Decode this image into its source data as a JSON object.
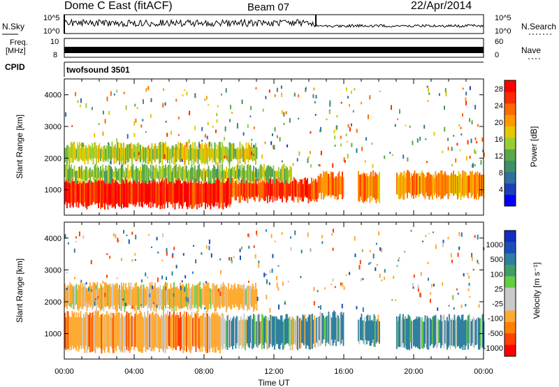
{
  "header": {
    "station": "Dome C East (fitACF)",
    "beam": "Beam 07",
    "date": "22/Apr/2014"
  },
  "top_panels": {
    "nsky_label": "N.Sky",
    "nsky_ticks": [
      "10^5",
      "10^0"
    ],
    "nsearch_label": "N.Search",
    "nsearch_ticks": [
      "10^5",
      "10^0"
    ],
    "freq_label": "Freq.",
    "freq_unit": "[MHz]",
    "freq_ticks": [
      "10",
      "8"
    ],
    "nave_label": "Nave",
    "nave_ticks": [
      "60",
      "0"
    ],
    "cpid_label": "CPID",
    "cpid_value": "twofsound 3501"
  },
  "colors": {
    "power_scale": [
      "#0000ff",
      "#1b3fb8",
      "#2f6fa0",
      "#3f8f6a",
      "#5aa84a",
      "#9acd32",
      "#e6c800",
      "#ff9900",
      "#ff6a00",
      "#ff2a00",
      "#ff0000"
    ],
    "velocity_scale": [
      "#ff0000",
      "#ff4000",
      "#ff7f00",
      "#ffaa33",
      "#c9c9c9",
      "#c9c9c9",
      "#66cc44",
      "#3f9f66",
      "#2f7fa0",
      "#1b4fb8",
      "#1030c0"
    ]
  },
  "chart_data": [
    {
      "type": "heatmap",
      "panel": "power",
      "ylabel": "Slant Range [km]",
      "x_ticks": [
        "00:00",
        "04:00",
        "08:00",
        "12:00",
        "16:00",
        "20:00",
        "00:00"
      ],
      "y_ticks": [
        1000,
        2000,
        3000,
        4000
      ],
      "ylim": [
        200,
        4500
      ],
      "colorbar": {
        "label": "Power [dB]",
        "ticks": [
          4,
          8,
          12,
          16,
          20,
          24,
          28
        ],
        "range": [
          0,
          30
        ]
      },
      "bands": [
        {
          "t_start": 0.0,
          "t_end": 9.5,
          "range_low": 500,
          "range_high": 1300,
          "value": 28
        },
        {
          "t_start": 9.5,
          "t_end": 14.5,
          "range_low": 700,
          "range_high": 1300,
          "value": 26
        },
        {
          "t_start": 14.5,
          "t_end": 16.0,
          "range_low": 800,
          "range_high": 1500,
          "value": 24
        },
        {
          "t_start": 16.8,
          "t_end": 18.0,
          "range_low": 700,
          "range_high": 1500,
          "value": 22
        },
        {
          "t_start": 19.0,
          "t_end": 24.0,
          "range_low": 800,
          "range_high": 1500,
          "value": 22
        },
        {
          "t_start": 0.0,
          "t_end": 13.0,
          "range_low": 1300,
          "range_high": 1700,
          "value": 14
        },
        {
          "t_start": 0.0,
          "t_end": 11.0,
          "range_low": 1900,
          "range_high": 2400,
          "value": 16
        }
      ]
    },
    {
      "type": "heatmap",
      "panel": "velocity",
      "xlabel": "Time UT",
      "ylabel": "Slant Range [km]",
      "x_ticks": [
        "00:00",
        "04:00",
        "08:00",
        "12:00",
        "16:00",
        "20:00",
        "00:00"
      ],
      "y_ticks": [
        1000,
        2000,
        3000,
        4000
      ],
      "ylim": [
        200,
        4500
      ],
      "colorbar": {
        "label": "Velocity [m s⁻¹]",
        "ticks": [
          "1000",
          "500",
          "100",
          "25",
          "-25",
          "-100",
          "-500",
          "-1000"
        ]
      },
      "bands": [
        {
          "t_start": 0.0,
          "t_end": 9.0,
          "range_low": 500,
          "range_high": 1600,
          "value": -300
        },
        {
          "t_start": 9.0,
          "t_end": 14.5,
          "range_low": 600,
          "range_high": 1500,
          "value": 150
        },
        {
          "t_start": 14.5,
          "t_end": 16.0,
          "range_low": 700,
          "range_high": 1600,
          "value": 200
        },
        {
          "t_start": 16.8,
          "t_end": 18.0,
          "range_low": 700,
          "range_high": 1500,
          "value": 150
        },
        {
          "t_start": 19.0,
          "t_end": 24.0,
          "range_low": 600,
          "range_high": 1500,
          "value": 200
        },
        {
          "t_start": 0.0,
          "t_end": 11.0,
          "range_low": 1800,
          "range_high": 2500,
          "value": -200
        }
      ]
    }
  ]
}
